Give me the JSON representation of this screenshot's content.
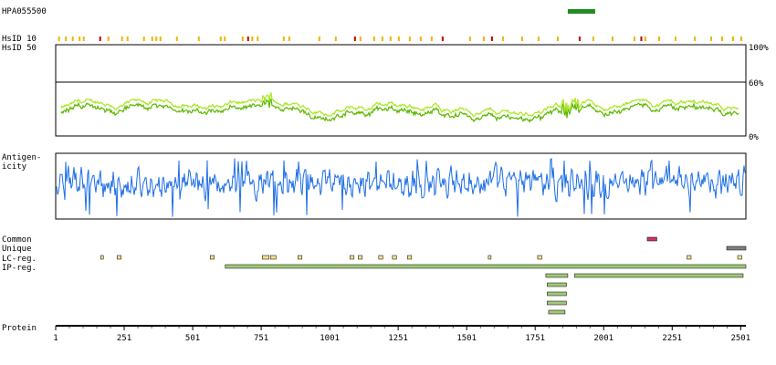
{
  "chart_data": {
    "type": "protein-feature-track",
    "antibody_id": "HPA055500",
    "sequence_length": 2520,
    "antigen_region": [
      1870,
      1970
    ],
    "hsid10_label": "HsID 10",
    "hsid50_label": "HsID 50",
    "hsid_axis": {
      "ticks": [
        "100%",
        "60%",
        "0%"
      ],
      "values": [
        100,
        60,
        0
      ]
    },
    "hsid10_marks": [
      {
        "pos": 10,
        "color": "#f0b400"
      },
      {
        "pos": 35,
        "color": "#f0b400"
      },
      {
        "pos": 60,
        "color": "#f0b400"
      },
      {
        "pos": 85,
        "color": "#f0b400"
      },
      {
        "pos": 100,
        "color": "#f0b400"
      },
      {
        "pos": 160,
        "color": "#c00000"
      },
      {
        "pos": 190,
        "color": "#f0b400"
      },
      {
        "pos": 240,
        "color": "#f0b400"
      },
      {
        "pos": 260,
        "color": "#f0b400"
      },
      {
        "pos": 320,
        "color": "#f0b400"
      },
      {
        "pos": 350,
        "color": "#f0b400"
      },
      {
        "pos": 365,
        "color": "#f0b400"
      },
      {
        "pos": 380,
        "color": "#f0b400"
      },
      {
        "pos": 440,
        "color": "#f0b400"
      },
      {
        "pos": 520,
        "color": "#f0b400"
      },
      {
        "pos": 600,
        "color": "#f0b400"
      },
      {
        "pos": 615,
        "color": "#f0b400"
      },
      {
        "pos": 680,
        "color": "#f0b400"
      },
      {
        "pos": 700,
        "color": "#c00000"
      },
      {
        "pos": 715,
        "color": "#f0b400"
      },
      {
        "pos": 735,
        "color": "#f0b400"
      },
      {
        "pos": 830,
        "color": "#f0b400"
      },
      {
        "pos": 850,
        "color": "#f0b400"
      },
      {
        "pos": 960,
        "color": "#f0b400"
      },
      {
        "pos": 1020,
        "color": "#f0b400"
      },
      {
        "pos": 1090,
        "color": "#c00000"
      },
      {
        "pos": 1110,
        "color": "#f0b400"
      },
      {
        "pos": 1160,
        "color": "#f0b400"
      },
      {
        "pos": 1190,
        "color": "#f0b400"
      },
      {
        "pos": 1220,
        "color": "#f0b400"
      },
      {
        "pos": 1250,
        "color": "#f0b400"
      },
      {
        "pos": 1290,
        "color": "#f0b400"
      },
      {
        "pos": 1330,
        "color": "#f0b400"
      },
      {
        "pos": 1370,
        "color": "#f0b400"
      },
      {
        "pos": 1410,
        "color": "#c00000"
      },
      {
        "pos": 1510,
        "color": "#f0b400"
      },
      {
        "pos": 1560,
        "color": "#f0b400"
      },
      {
        "pos": 1590,
        "color": "#c00000"
      },
      {
        "pos": 1630,
        "color": "#f0b400"
      },
      {
        "pos": 1700,
        "color": "#f0b400"
      },
      {
        "pos": 1760,
        "color": "#f0b400"
      },
      {
        "pos": 1830,
        "color": "#f0b400"
      },
      {
        "pos": 1910,
        "color": "#c00000"
      },
      {
        "pos": 1960,
        "color": "#f0b400"
      },
      {
        "pos": 2030,
        "color": "#f0b400"
      },
      {
        "pos": 2110,
        "color": "#f0b400"
      },
      {
        "pos": 2135,
        "color": "#c00000"
      },
      {
        "pos": 2150,
        "color": "#f0b400"
      },
      {
        "pos": 2200,
        "color": "#f0b400"
      },
      {
        "pos": 2260,
        "color": "#f0b400"
      },
      {
        "pos": 2330,
        "color": "#f0b400"
      },
      {
        "pos": 2390,
        "color": "#f0b400"
      },
      {
        "pos": 2430,
        "color": "#f0b400"
      },
      {
        "pos": 2470,
        "color": "#f0b400"
      },
      {
        "pos": 2500,
        "color": "#f0b400"
      }
    ],
    "antigenicity_label": [
      "Antigen-",
      "icity"
    ],
    "features": {
      "common_label": "Common",
      "unique_label": "Unique",
      "lc_label": "LC-reg.",
      "ip_label": "IP-reg.",
      "common": [
        [
          2160,
          2195
        ]
      ],
      "unique": [
        [
          2450,
          2520
        ]
      ],
      "lc_regions": [
        [
          165,
          175
        ],
        [
          225,
          240
        ],
        [
          565,
          580
        ],
        [
          755,
          780
        ],
        [
          785,
          805
        ],
        [
          885,
          900
        ],
        [
          1075,
          1090
        ],
        [
          1105,
          1120
        ],
        [
          1180,
          1195
        ],
        [
          1230,
          1245
        ],
        [
          1285,
          1300
        ],
        [
          1580,
          1590
        ],
        [
          1760,
          1775
        ],
        [
          2305,
          2320
        ],
        [
          2490,
          2505
        ]
      ],
      "ip_regions": [
        {
          "range": [
            620,
            2520
          ],
          "row": 0
        },
        {
          "range": [
            1790,
            1870
          ],
          "row": 1
        },
        {
          "range": [
            1895,
            2510
          ],
          "row": 1
        },
        {
          "range": [
            1795,
            1865
          ],
          "row": 2
        },
        {
          "range": [
            1795,
            1865
          ],
          "row": 3
        },
        {
          "range": [
            1795,
            1865
          ],
          "row": 4
        },
        {
          "range": [
            1800,
            1860
          ],
          "row": 5
        }
      ]
    },
    "protein_label": "Protein",
    "x_ticks": [
      "1",
      "251",
      "501",
      "751",
      "1001",
      "1251",
      "1501",
      "1751",
      "2001",
      "2251",
      "2501"
    ],
    "x_tick_values": [
      1,
      251,
      501,
      751,
      1001,
      1251,
      1501,
      1751,
      2001,
      2251,
      2501
    ],
    "colors": {
      "antigen": "#228b22",
      "hsid_light": "#a8e61e",
      "hsid_dark": "#5cb800",
      "antigenicity": "#1e6ee6",
      "common": "#cc3366",
      "unique": "#808080",
      "lc": "#f2e08c",
      "ip": "#a0c878"
    }
  }
}
